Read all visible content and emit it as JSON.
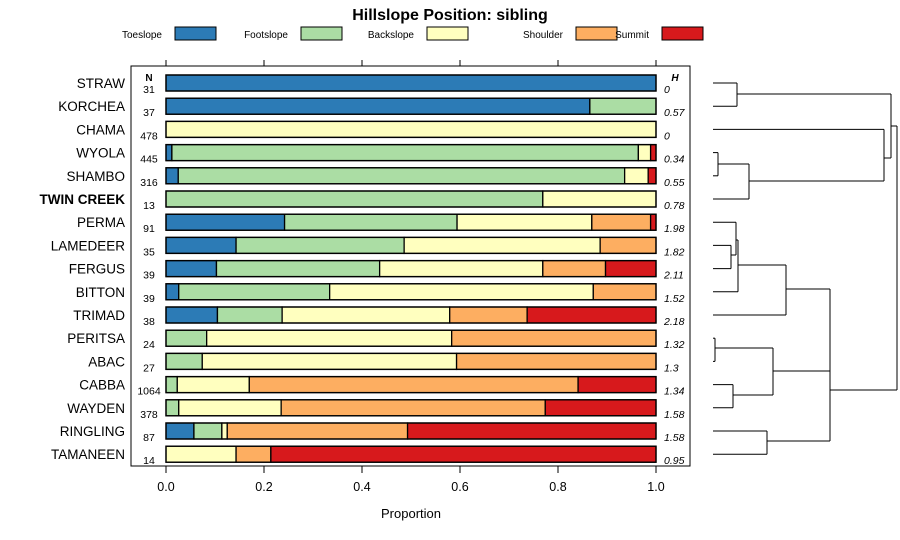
{
  "chart_data": {
    "type": "bar",
    "orientation": "horizontal",
    "stacked": true,
    "title": "Hillslope Position: sibling",
    "xlabel": "Proportion",
    "xlim": [
      0,
      1
    ],
    "xticks": [
      "0.0",
      "0.2",
      "0.4",
      "0.6",
      "0.8",
      "1.0"
    ],
    "grid": false,
    "legend_position": "top",
    "n_header": "N",
    "h_header": "H",
    "categories": [
      "STRAW",
      "KORCHEA",
      "CHAMA",
      "WYOLA",
      "SHAMBO",
      "TWIN CREEK",
      "PERMA",
      "LAMEDEER",
      "FERGUS",
      "BITTON",
      "TRIMAD",
      "PERITSA",
      "ABAC",
      "CABBA",
      "WAYDEN",
      "RINGLING",
      "TAMANEEN"
    ],
    "highlighted_category": "TWIN CREEK",
    "n": [
      "31",
      "37",
      "478",
      "445",
      "316",
      "13",
      "91",
      "35",
      "39",
      "39",
      "38",
      "24",
      "27",
      "1064",
      "378",
      "87",
      "14"
    ],
    "h": [
      "0",
      "0.57",
      "0",
      "0.34",
      "0.55",
      "0.78",
      "1.98",
      "1.82",
      "2.11",
      "1.52",
      "2.18",
      "1.32",
      "1.3",
      "1.34",
      "1.58",
      "1.58",
      "0.95"
    ],
    "series": [
      {
        "name": "Toeslope",
        "color": "#2c7bb6",
        "values": [
          1.0,
          0.865,
          0,
          0.012,
          0.025,
          0,
          0.242,
          0.143,
          0.103,
          0.026,
          0.105,
          0,
          0,
          0,
          0,
          0.057,
          0
        ]
      },
      {
        "name": "Footslope",
        "color": "#abdda4",
        "values": [
          0,
          0.135,
          0,
          0.952,
          0.911,
          0.769,
          0.352,
          0.343,
          0.333,
          0.308,
          0.132,
          0.083,
          0.074,
          0.023,
          0.026,
          0.057,
          0
        ]
      },
      {
        "name": "Backslope",
        "color": "#ffffbf",
        "values": [
          0,
          0,
          1.0,
          0.025,
          0.048,
          0.231,
          0.275,
          0.4,
          0.333,
          0.538,
          0.342,
          0.5,
          0.519,
          0.147,
          0.209,
          0.011,
          0.143
        ]
      },
      {
        "name": "Shoulder",
        "color": "#fdae61",
        "values": [
          0,
          0,
          0,
          0,
          0,
          0,
          0.12,
          0.114,
          0.128,
          0.128,
          0.158,
          0.417,
          0.407,
          0.671,
          0.539,
          0.368,
          0.071
        ]
      },
      {
        "name": "Summit",
        "color": "#d7191c",
        "values": [
          0,
          0,
          0,
          0.011,
          0.016,
          0,
          0.011,
          0,
          0.103,
          0,
          0.263,
          0,
          0,
          0.159,
          0.226,
          0.507,
          0.786
        ]
      }
    ]
  }
}
